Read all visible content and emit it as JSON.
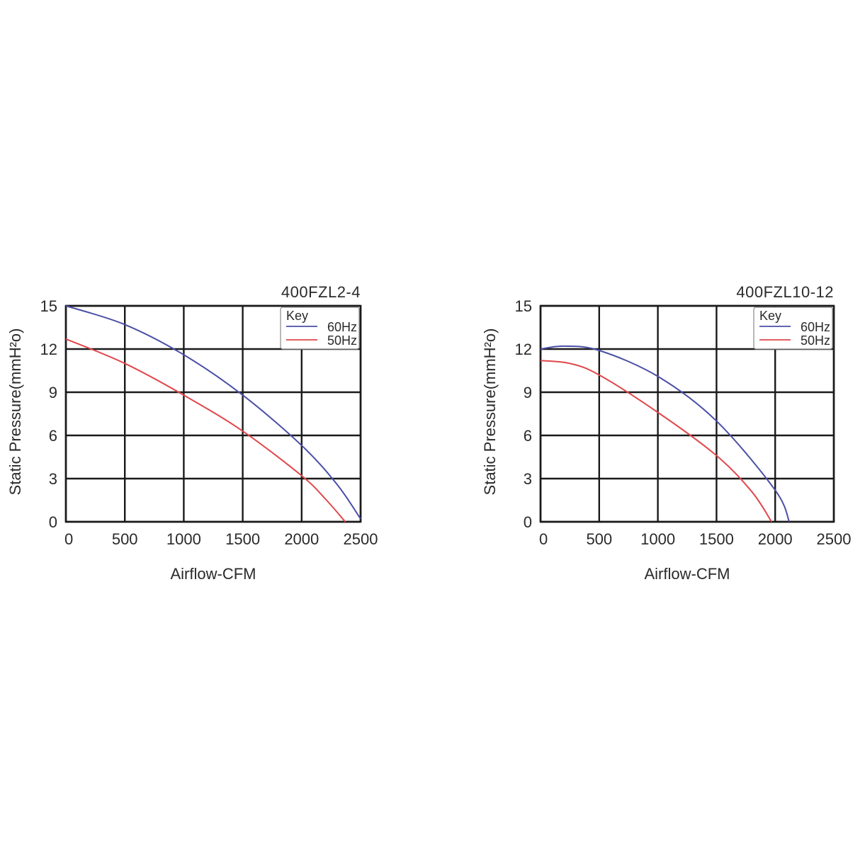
{
  "chart_data": [
    {
      "type": "line",
      "title": "400FZL2-4",
      "xlabel": "Airflow-CFM",
      "ylabel": "Static Pressure(mmH²o)",
      "xlim": [
        0,
        2500
      ],
      "ylim": [
        0,
        15
      ],
      "xticks": [
        "0",
        "500",
        "1000",
        "1500",
        "2000",
        "2500"
      ],
      "yticks": [
        "0",
        "3",
        "6",
        "9",
        "12",
        "15"
      ],
      "grid": true,
      "legend": {
        "title": "Key",
        "placement": "top-right"
      },
      "series": [
        {
          "name": "60Hz",
          "color": "#4a4fa6",
          "points": [
            [
              0,
              15.0
            ],
            [
              500,
              13.7
            ],
            [
              1000,
              11.6
            ],
            [
              1500,
              8.8
            ],
            [
              2000,
              5.3
            ],
            [
              2300,
              2.6
            ],
            [
              2500,
              0.2
            ]
          ]
        },
        {
          "name": "50Hz",
          "color": "#e0474c",
          "points": [
            [
              0,
              12.7
            ],
            [
              500,
              11.0
            ],
            [
              1000,
              8.8
            ],
            [
              1500,
              6.3
            ],
            [
              2000,
              3.2
            ],
            [
              2200,
              1.6
            ],
            [
              2370,
              0.0
            ]
          ]
        }
      ]
    },
    {
      "type": "line",
      "title": "400FZL10-12",
      "xlabel": "Airflow-CFM",
      "ylabel": "Static Pressure(mmH²o)",
      "xlim": [
        0,
        2500
      ],
      "ylim": [
        0,
        15
      ],
      "xticks": [
        "0",
        "500",
        "1000",
        "1500",
        "2000",
        "2500"
      ],
      "yticks": [
        "0",
        "3",
        "6",
        "9",
        "12",
        "15"
      ],
      "grid": true,
      "legend": {
        "title": "Key",
        "placement": "top-right"
      },
      "series": [
        {
          "name": "60Hz",
          "color": "#4a4fa6",
          "points": [
            [
              0,
              12.0
            ],
            [
              200,
              12.2
            ],
            [
              500,
              11.9
            ],
            [
              1000,
              10.1
            ],
            [
              1500,
              7.0
            ],
            [
              2000,
              2.2
            ],
            [
              2120,
              0.0
            ]
          ]
        },
        {
          "name": "50Hz",
          "color": "#e0474c",
          "points": [
            [
              0,
              11.2
            ],
            [
              250,
              11.0
            ],
            [
              500,
              10.2
            ],
            [
              1000,
              7.6
            ],
            [
              1500,
              4.6
            ],
            [
              1800,
              2.1
            ],
            [
              1970,
              0.0
            ]
          ]
        }
      ]
    }
  ]
}
